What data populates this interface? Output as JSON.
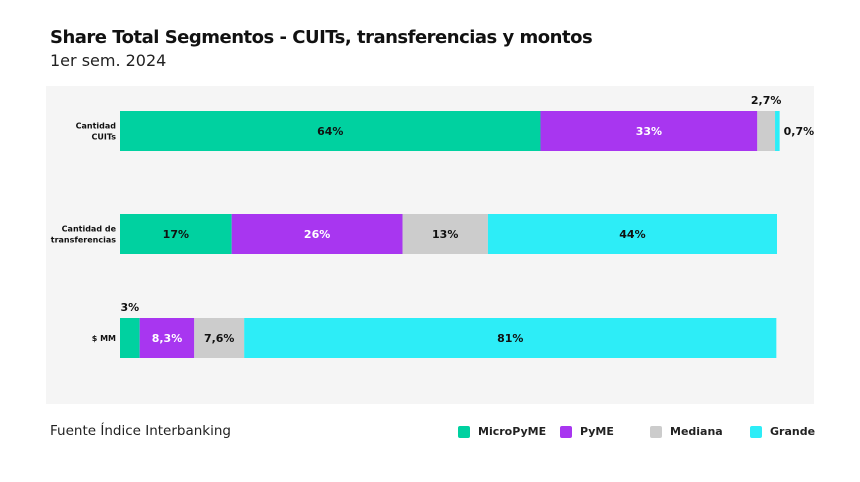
{
  "title": "Share Total Segmentos -  CUITs, transferencias y montos",
  "subtitle": "1er sem. 2024",
  "source": "Fuente Índice Interbanking",
  "colors": {
    "MicroPyME": "#00d1a0",
    "PyME": "#a836f0",
    "Mediana": "#cccccc",
    "Grande": "#2dedf7"
  },
  "legend": [
    {
      "name": "MicroPyME",
      "color": "#00d1a0"
    },
    {
      "name": "PyME",
      "color": "#a836f0"
    },
    {
      "name": "Mediana",
      "color": "#cccccc"
    },
    {
      "name": "Grande",
      "color": "#2dedf7"
    }
  ],
  "chart_data": {
    "type": "bar",
    "orientation": "horizontal",
    "stacked": true,
    "title": "Share Total Segmentos -  CUITs, transferencias y montos",
    "subtitle": "1er sem. 2024",
    "categories": [
      [
        "Cantidad",
        "CUITs"
      ],
      [
        "Cantidad de",
        "transferencias"
      ],
      [
        "$ MM"
      ]
    ],
    "xlim": [
      0,
      100
    ],
    "grid": false,
    "legend_position": "bottom-right",
    "series": [
      {
        "name": "MicroPyME",
        "values": [
          64,
          17,
          3
        ],
        "labels": [
          "64%",
          "17%",
          "3%"
        ]
      },
      {
        "name": "PyME",
        "values": [
          33,
          26,
          8.3
        ],
        "labels": [
          "33%",
          "26%",
          "8,3%"
        ]
      },
      {
        "name": "Mediana",
        "values": [
          2.7,
          13,
          7.6
        ],
        "labels": [
          "2,7%",
          "13%",
          "7,6%"
        ]
      },
      {
        "name": "Grande",
        "values": [
          0.7,
          44,
          81
        ],
        "labels": [
          "0,7%",
          "44%",
          "81%"
        ]
      }
    ]
  }
}
